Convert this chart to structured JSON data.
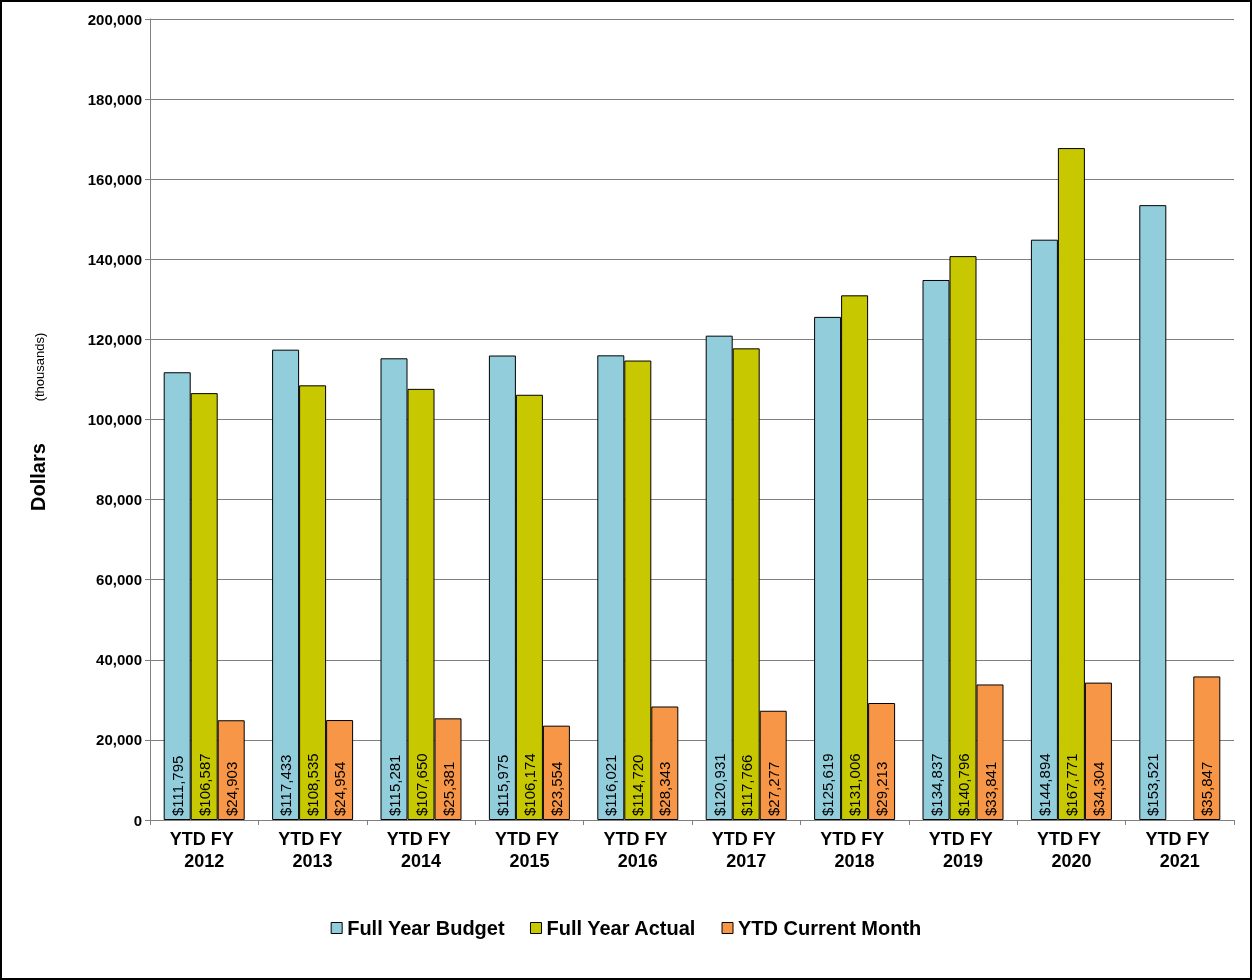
{
  "chart_data": {
    "type": "bar",
    "ylabel": "Dollars",
    "annotations": [
      "(thousands)"
    ],
    "categories": [
      "YTD FY 2012",
      "YTD FY 2013",
      "YTD FY 2014",
      "YTD FY 2015",
      "YTD FY 2016",
      "YTD FY 2017",
      "YTD FY 2018",
      "YTD FY 2019",
      "YTD FY 2020",
      "YTD FY 2021"
    ],
    "series": [
      {
        "name": "Full Year Budget",
        "color": "#92cddc",
        "values": [
          111795,
          117433,
          115281,
          115975,
          116021,
          120931,
          125619,
          134837,
          144894,
          153521
        ],
        "value_labels": [
          "$111,795",
          "$117,433",
          "$115,281",
          "$115,975",
          "$116,021",
          "$120,931",
          "$125,619",
          "$134,837",
          "$144,894",
          "$153,521"
        ]
      },
      {
        "name": "Full Year Actual",
        "color": "#c8c800",
        "values": [
          106587,
          108535,
          107650,
          106174,
          114720,
          117766,
          131006,
          140796,
          167771,
          null
        ],
        "value_labels": [
          "$106,587",
          "$108,535",
          "$107,650",
          "$106,174",
          "$114,720",
          "$117,766",
          "$131,006",
          "$140,796",
          "$167,771",
          null
        ]
      },
      {
        "name": "YTD Current Month",
        "color": "#f79646",
        "values": [
          24903,
          24954,
          25381,
          23554,
          28343,
          27277,
          29213,
          33841,
          34304,
          35847
        ],
        "value_labels": [
          "$24,903",
          "$24,954",
          "$25,381",
          "$23,554",
          "$28,343",
          "$27,277",
          "$29,213",
          "$33,841",
          "$34,304",
          "$35,847"
        ]
      }
    ],
    "ylim": [
      0,
      200000
    ],
    "yticks": [
      0,
      {
        "value": 20000,
        "label": "20,000"
      },
      {
        "value": 40000,
        "label": "40,000"
      },
      {
        "value": 60000,
        "label": "60,000"
      },
      {
        "value": 80000,
        "label": "80,000"
      },
      {
        "value": 100000,
        "label": "100,000"
      },
      {
        "value": 120000,
        "label": "120,000"
      },
      {
        "value": 140000,
        "label": "140,000"
      },
      {
        "value": 160000,
        "label": "160,000"
      },
      {
        "value": 180000,
        "label": "180,000"
      },
      {
        "value": 200000,
        "label": "200,000"
      }
    ],
    "grid": "y",
    "legend": "bottom"
  }
}
